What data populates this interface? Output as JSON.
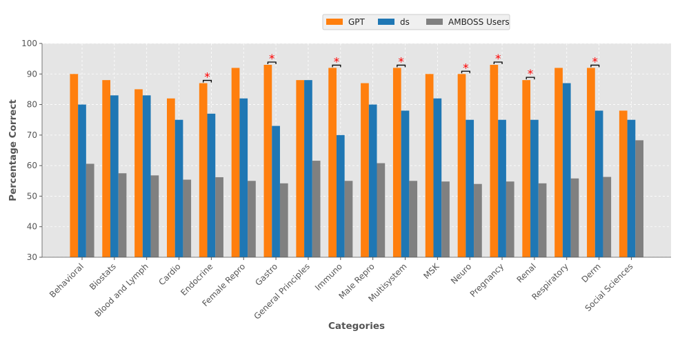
{
  "chart_data": {
    "type": "bar",
    "title": "",
    "xlabel": "Categories",
    "ylabel": "Percentage Correct",
    "ylim": [
      30,
      100
    ],
    "yticks": [
      30,
      40,
      50,
      60,
      70,
      80,
      90,
      100
    ],
    "grid": true,
    "legend_position": "top-center",
    "categories": [
      "Behavioral",
      "Biostats",
      "Blood and Lymph",
      "Cardio",
      "Endocrine",
      "Female Repro",
      "Gastro",
      "General Principles",
      "Immuno",
      "Male Repro",
      "Multisystem",
      "MSK",
      "Neuro",
      "Pregnancy",
      "Renal",
      "Respiratory",
      "Derm",
      "Social Sciences"
    ],
    "series": [
      {
        "name": "GPT",
        "color": "#ff7f0e",
        "values": [
          90,
          88,
          85,
          82,
          87,
          92,
          93,
          88,
          92,
          87,
          92,
          90,
          90,
          93,
          88,
          92,
          92,
          78
        ]
      },
      {
        "name": "ds",
        "color": "#1f77b4",
        "values": [
          80,
          83,
          83,
          75,
          77,
          82,
          73,
          88,
          70,
          80,
          78,
          82,
          75,
          75,
          75,
          87,
          78,
          75
        ]
      },
      {
        "name": "AMBOSS Users",
        "color": "#808080",
        "values": [
          60.6,
          57.5,
          56.8,
          55.4,
          56.2,
          55,
          54.2,
          61.6,
          55,
          60.8,
          55,
          54.8,
          54,
          54.8,
          54.2,
          55.8,
          56.3,
          68.3
        ]
      }
    ],
    "significance": {
      "marker": "*",
      "color": "#ff0000",
      "categories": [
        "Endocrine",
        "Gastro",
        "Immuno",
        "Multisystem",
        "Neuro",
        "Pregnancy",
        "Renal",
        "Derm"
      ]
    }
  },
  "style": {
    "plot_background": "#e5e5e5",
    "grid_color": "#ffffff",
    "text_color": "#555555"
  }
}
